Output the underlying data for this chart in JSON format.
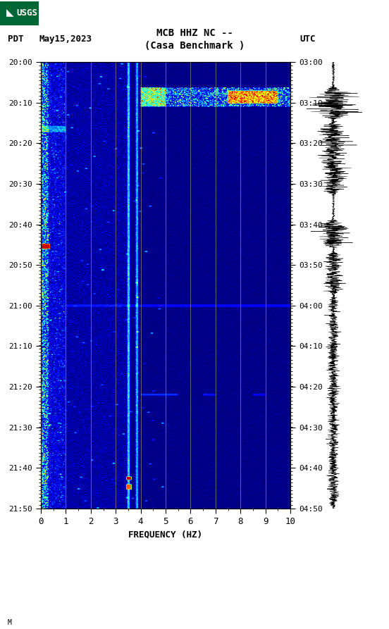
{
  "title_line1": "MCB HHZ NC --",
  "title_line2": "(Casa Benchmark )",
  "left_label_pdt": "PDT",
  "left_label_date": "May15,2023",
  "right_label": "UTC",
  "y_left_ticks": [
    "20:00",
    "20:10",
    "20:20",
    "20:30",
    "20:40",
    "20:50",
    "21:00",
    "21:10",
    "21:20",
    "21:30",
    "21:40",
    "21:50"
  ],
  "y_right_ticks": [
    "03:00",
    "03:10",
    "03:20",
    "03:30",
    "03:40",
    "03:50",
    "04:00",
    "04:10",
    "04:20",
    "04:30",
    "04:40",
    "04:50"
  ],
  "x_ticks": [
    0,
    1,
    2,
    3,
    4,
    5,
    6,
    7,
    8,
    9,
    10
  ],
  "xlabel": "FREQUENCY (HZ)",
  "background_color": "#ffffff",
  "usgs_color": "#006633",
  "footnote": "M",
  "fig_width": 5.52,
  "fig_height": 8.93
}
